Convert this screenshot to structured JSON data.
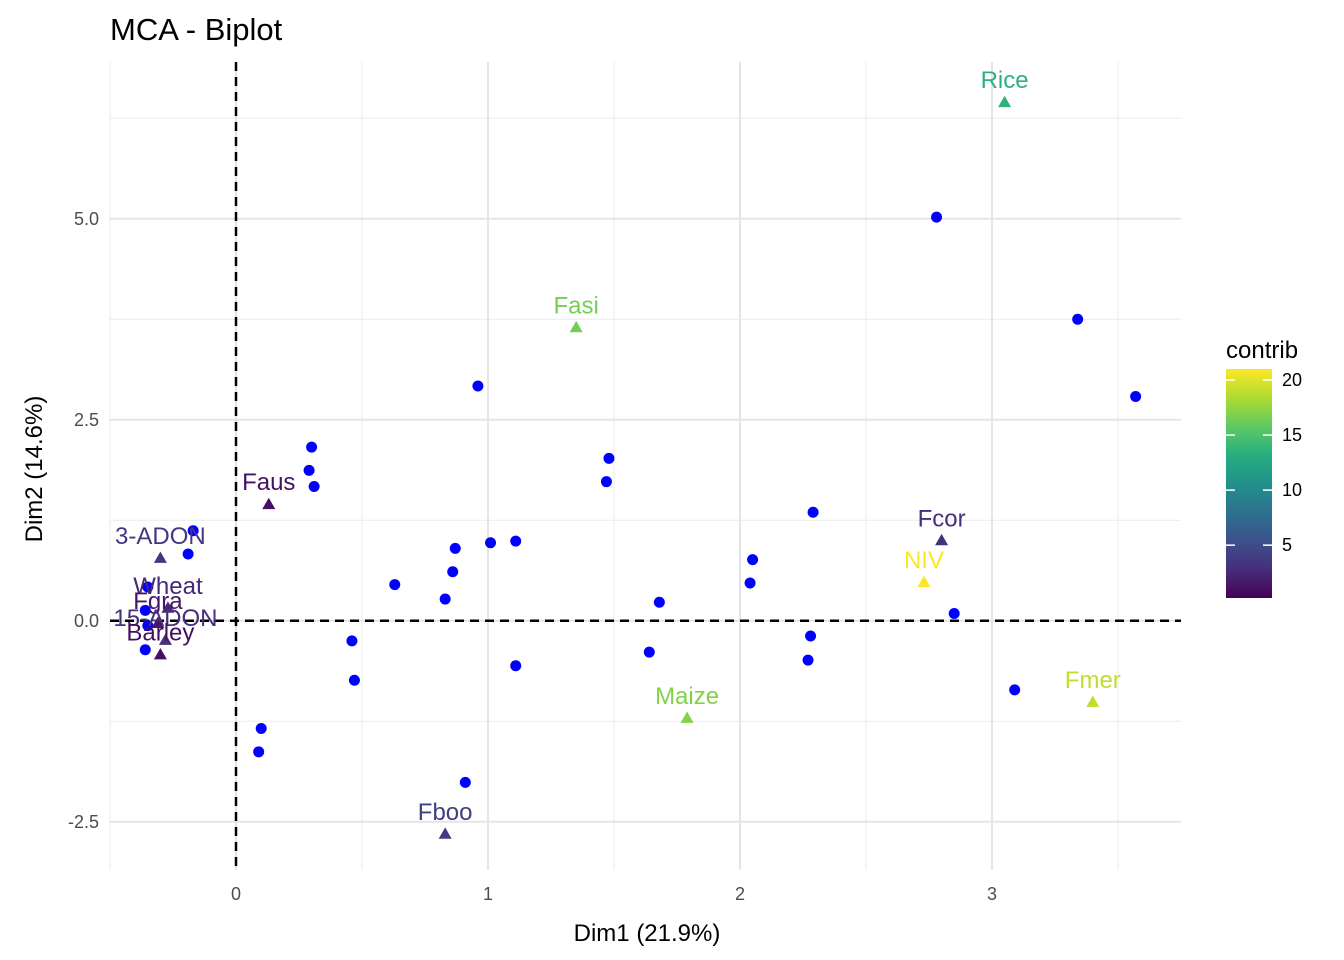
{
  "chart_data": {
    "type": "scatter",
    "title": "MCA - Biplot",
    "xlabel": "Dim1 (21.9%)",
    "ylabel": "Dim2 (14.6%)",
    "xlim": [
      -0.5,
      3.75
    ],
    "ylim": [
      -3.1,
      6.95
    ],
    "x_ticks": [
      0,
      1,
      2,
      3
    ],
    "x_tick_labels": [
      "0",
      "1",
      "2",
      "3"
    ],
    "y_ticks": [
      -2.5,
      0,
      2.5,
      5
    ],
    "y_tick_labels": [
      "-2.5",
      "0.0",
      "2.5",
      "5.0"
    ],
    "grid": true,
    "reference_lines": {
      "x": 0,
      "y": 0,
      "style": "dashed"
    },
    "individuals": {
      "color": "#0000ff",
      "points": [
        [
          2.78,
          5.02
        ],
        [
          3.34,
          3.75
        ],
        [
          3.57,
          2.79
        ],
        [
          0.96,
          2.92
        ],
        [
          1.48,
          2.02
        ],
        [
          1.47,
          1.73
        ],
        [
          0.3,
          2.16
        ],
        [
          0.29,
          1.87
        ],
        [
          0.31,
          1.67
        ],
        [
          2.29,
          1.35
        ],
        [
          1.01,
          0.97
        ],
        [
          1.11,
          0.99
        ],
        [
          0.87,
          0.9
        ],
        [
          0.86,
          0.61
        ],
        [
          0.63,
          0.45
        ],
        [
          0.83,
          0.27
        ],
        [
          2.05,
          0.76
        ],
        [
          2.04,
          0.47
        ],
        [
          1.68,
          0.23
        ],
        [
          2.85,
          0.09
        ],
        [
          -0.17,
          1.12
        ],
        [
          -0.19,
          0.83
        ],
        [
          -0.35,
          0.42
        ],
        [
          -0.36,
          0.13
        ],
        [
          -0.35,
          -0.06
        ],
        [
          -0.36,
          -0.36
        ],
        [
          0.46,
          -0.25
        ],
        [
          0.47,
          -0.74
        ],
        [
          1.64,
          -0.39
        ],
        [
          1.11,
          -0.56
        ],
        [
          2.28,
          -0.19
        ],
        [
          2.27,
          -0.49
        ],
        [
          3.09,
          -0.86
        ],
        [
          0.1,
          -1.34
        ],
        [
          0.09,
          -1.63
        ],
        [
          0.91,
          -2.01
        ]
      ]
    },
    "variables": [
      {
        "label": "Rice",
        "x": 3.05,
        "y": 6.45,
        "contrib": 13.5
      },
      {
        "label": "Fasi",
        "x": 1.35,
        "y": 3.65,
        "contrib": 16.5
      },
      {
        "label": "Faus",
        "x": 0.13,
        "y": 1.45,
        "contrib": 1.2
      },
      {
        "label": "3-ADON",
        "x": -0.3,
        "y": 0.78,
        "contrib": 3.5
      },
      {
        "label": "Wheat",
        "x": -0.27,
        "y": 0.16,
        "contrib": 2.5
      },
      {
        "label": "Fgra",
        "x": -0.31,
        "y": -0.03,
        "contrib": 1.5
      },
      {
        "label": "15-ADON",
        "x": -0.28,
        "y": -0.24,
        "contrib": 3.0
      },
      {
        "label": "Barley",
        "x": -0.3,
        "y": -0.42,
        "contrib": 1.0
      },
      {
        "label": "Fcor",
        "x": 2.8,
        "y": 1.0,
        "contrib": 3.0
      },
      {
        "label": "NIV",
        "x": 2.73,
        "y": 0.48,
        "contrib": 21.0
      },
      {
        "label": "Fmer",
        "x": 3.4,
        "y": -1.01,
        "contrib": 19.0
      },
      {
        "label": "Maize",
        "x": 1.79,
        "y": -1.21,
        "contrib": 17.0
      },
      {
        "label": "Fboo",
        "x": 0.83,
        "y": -2.65,
        "contrib": 4.0
      }
    ],
    "legend": {
      "title": "contrib",
      "position": "right",
      "range": [
        0.2,
        21
      ],
      "ticks": [
        5,
        10,
        15,
        20
      ],
      "tick_labels": [
        "5",
        "10",
        "15",
        "20"
      ],
      "colormap": "viridis"
    }
  }
}
